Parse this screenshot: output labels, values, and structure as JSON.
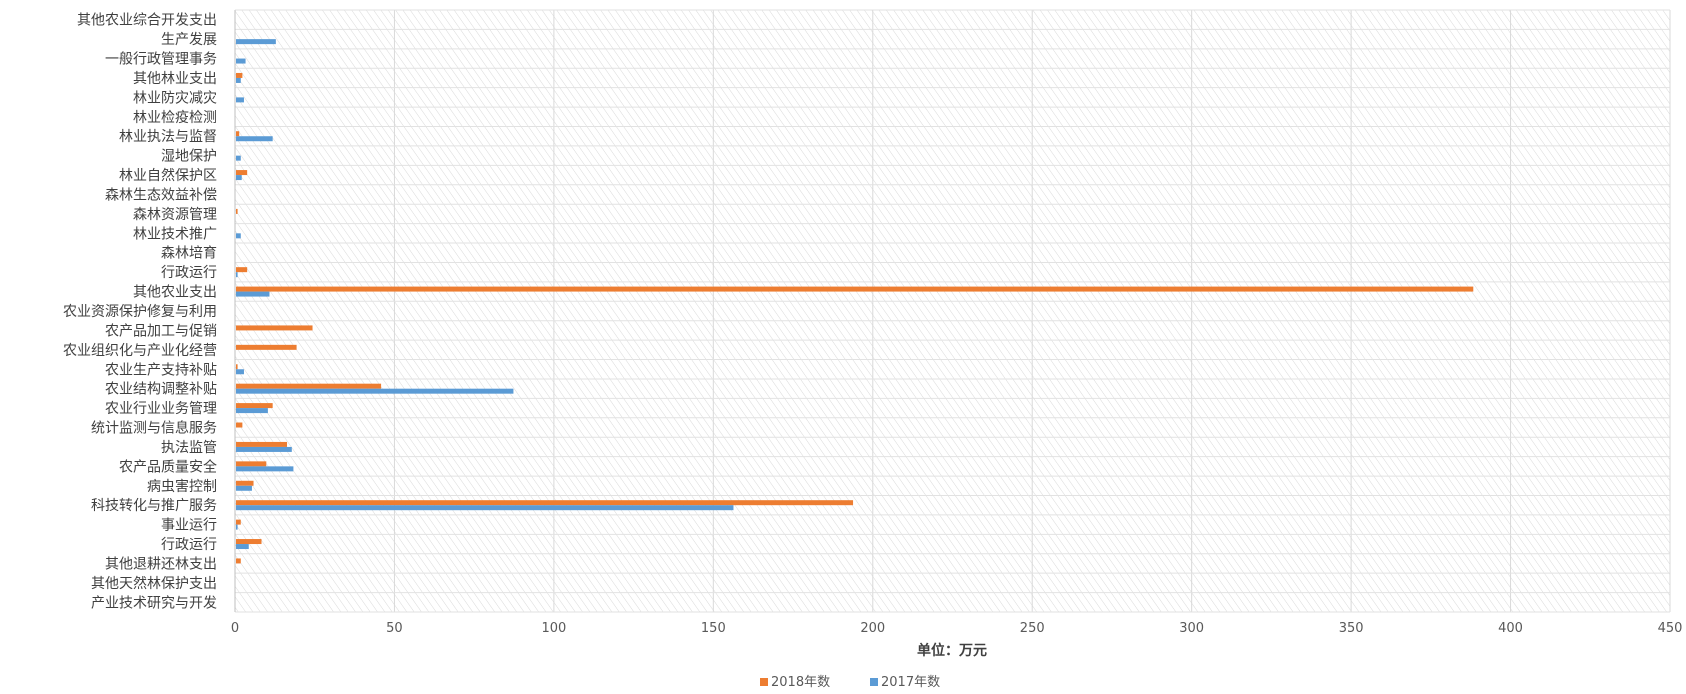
{
  "chart_data": {
    "type": "bar",
    "orientation": "horizontal",
    "title": "",
    "xlabel": "单位：万元",
    "ylabel": "",
    "xlim": [
      0,
      450
    ],
    "xticks": [
      0,
      50,
      100,
      150,
      200,
      250,
      300,
      350,
      400,
      450
    ],
    "grid": true,
    "legend_position": "bottom",
    "categories": [
      "其他农业综合开发支出",
      "生产发展",
      "一般行政管理事务",
      "其他林业支出",
      "林业防灾减灾",
      "林业检疫检测",
      "林业执法与监督",
      "湿地保护",
      "林业自然保护区",
      "森林生态效益补偿",
      "森林资源管理",
      "林业技术推广",
      "森林培育",
      "行政运行",
      "其他农业支出",
      "农业资源保护修复与利用",
      "农产品加工与促销",
      "农业组织化与产业化经营",
      "农业生产支持补贴",
      "农业结构调整补贴",
      "农业行业业务管理",
      "统计监测与信息服务",
      "执法监管",
      "农产品质量安全",
      "病虫害控制",
      "科技转化与推广服务",
      "事业运行",
      "行政运行",
      "其他退耕还林支出",
      "其他天然林保护支出",
      "产业技术研究与开发"
    ],
    "series": [
      {
        "name": "2018年数",
        "color": "#ED7D31",
        "values": [
          0,
          0,
          0,
          2,
          0,
          0,
          1,
          0,
          3.5,
          0,
          0.5,
          0,
          0,
          3.5,
          388,
          0,
          24,
          19,
          0.5,
          45.5,
          11.5,
          2,
          16,
          9.5,
          5.5,
          193.5,
          1.5,
          8,
          1.5,
          0,
          0
        ]
      },
      {
        "name": "2017年数",
        "color": "#5B9BD5",
        "values": [
          0,
          12.5,
          3,
          1.5,
          2.5,
          0,
          11.5,
          1.5,
          1.8,
          0,
          0,
          1.5,
          0,
          0.5,
          10.5,
          0,
          0,
          0,
          2.5,
          87,
          10,
          0,
          17.5,
          18,
          5,
          156,
          0.5,
          4,
          0,
          0,
          0
        ]
      }
    ]
  }
}
